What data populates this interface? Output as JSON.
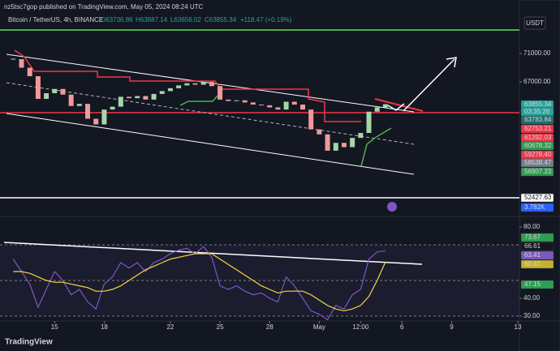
{
  "header": {
    "published": "nz5tsc7gop published on TradingView.com, May 05, 2024 08:24 UTC",
    "symbol": "Bitcoin / TetherUS, 4h, BINANCE",
    "ohlc": [
      "O63736.86",
      "H63887.14",
      "L63656.02",
      "C63855.34"
    ],
    "change": "+118.47 (+0.19%)",
    "currency": "USDT"
  },
  "chart_data": [
    {
      "type": "candlestick",
      "x": [
        12.5,
        13,
        13.5,
        14,
        14.5,
        15,
        15.5,
        16,
        16.5,
        17,
        17.5,
        18,
        18.5,
        19,
        19.5,
        20,
        20.5,
        21,
        21.5,
        22,
        22.5,
        23,
        23.5,
        24,
        24.5,
        25,
        25.5,
        26,
        26.5,
        27,
        27.5,
        28,
        28.5,
        29,
        29.5,
        30,
        30.5,
        31,
        31.5,
        32,
        32.5,
        33,
        33.5,
        34,
        34.5,
        35
      ],
      "values": [
        70200,
        69000,
        67800,
        64600,
        65400,
        66000,
        65200,
        63600,
        63900,
        61800,
        61000,
        63100,
        63500,
        64900,
        64700,
        65000,
        64500,
        65300,
        65700,
        66100,
        66500,
        66800,
        66600,
        67000,
        66400,
        64500,
        64300,
        64400,
        64100,
        63800,
        63700,
        63400,
        63100,
        64200,
        63800,
        63100,
        60300,
        59600,
        57300,
        58400,
        57800,
        59100,
        59800,
        62800,
        63400,
        63855.34
      ],
      "up_color": "#a5d6a7",
      "down_color": "#ef9a9a",
      "xlim": [
        11.7,
        43.1
      ],
      "ylim": [
        48257,
        74543
      ],
      "xticks": [
        15,
        18,
        22,
        25,
        28,
        {
          "value": 31,
          "label": "May"
        },
        {
          "value": 33.5,
          "label": "12:00"
        },
        {
          "value": 36,
          "label": "6"
        },
        {
          "value": 39,
          "label": "9"
        },
        {
          "value": 43,
          "label": "13"
        }
      ],
      "yticks": [
        {
          "value": 71000,
          "label": "71000.00"
        },
        {
          "value": 67000,
          "label": "67000.00"
        }
      ],
      "price_tags": [
        {
          "text": "63855.34",
          "color": "#26a69a"
        },
        {
          "text": "03:35:26",
          "color": "#26a69a"
        },
        {
          "text": "63783.84",
          "color": "#1e6f6a"
        },
        {
          "text": "62753.21",
          "color": "#f23645"
        },
        {
          "text": "61392.03",
          "color": "#f23645"
        },
        {
          "text": "60678.32",
          "color": "#2e9e4f"
        },
        {
          "text": "59278.40",
          "color": "#f23645"
        },
        {
          "text": "58538.47",
          "color": "#787b86"
        },
        {
          "text": "56907.23",
          "color": "#2e9e4f"
        },
        {
          "text": "52427.63",
          "color": "#ffffff"
        },
        {
          "text": "3.782K",
          "color": "#2962ff"
        }
      ]
    },
    {
      "type": "line",
      "x": [
        12.5,
        13,
        13.5,
        14,
        14.5,
        15,
        15.5,
        16,
        16.5,
        17,
        17.5,
        18,
        18.5,
        19,
        19.5,
        20,
        20.5,
        21,
        21.5,
        22,
        22.5,
        23,
        23.5,
        24,
        24.5,
        25,
        25.5,
        26,
        26.5,
        27,
        27.5,
        28,
        28.5,
        29,
        29.5,
        30,
        30.5,
        31,
        31.5,
        32,
        32.5,
        33,
        33.5,
        34,
        34.5,
        35
      ],
      "series": [
        {
          "color": "#7e57c2",
          "values": [
            62,
            55,
            48,
            35,
            45,
            55,
            50,
            42,
            45,
            38,
            34,
            48,
            52,
            60,
            57,
            60,
            55,
            60,
            62,
            65,
            67,
            68,
            65,
            69,
            63,
            47,
            45,
            47,
            44,
            42,
            43,
            40,
            38,
            52,
            47,
            40,
            33,
            31,
            28,
            36,
            34,
            42,
            45,
            62,
            66,
            66.61
          ]
        },
        {
          "color": "#f5d742",
          "values": [
            55,
            55,
            54,
            52,
            50,
            49,
            49,
            48,
            47,
            46,
            44,
            44,
            45,
            47,
            50,
            53,
            56,
            58,
            60,
            62,
            63,
            64,
            65,
            65,
            65,
            62,
            59,
            56,
            53,
            50,
            47,
            45,
            43,
            44,
            44,
            44,
            42,
            39,
            36,
            34,
            33,
            34,
            36,
            41,
            50,
            60.41
          ]
        }
      ],
      "xlim": [
        11.7,
        43.1
      ],
      "ylim": [
        27.73,
        84.55
      ],
      "yticks": [
        {
          "value": 80,
          "label": "80.00"
        },
        {
          "value": 40,
          "label": "40.00"
        },
        {
          "value": 30,
          "label": "30.00"
        }
      ],
      "price_tags": [
        {
          "text": "73.67",
          "color": "#2e9e4f"
        },
        {
          "text": "66.61",
          "color": "#131722"
        },
        {
          "text": "63.41",
          "color": "#7e57c2"
        },
        {
          "text": "60.41",
          "color": "#c9b22a"
        },
        {
          "text": "47.15",
          "color": "#2e9e4f"
        }
      ]
    }
  ],
  "footer": {
    "brand": "TradingView"
  }
}
